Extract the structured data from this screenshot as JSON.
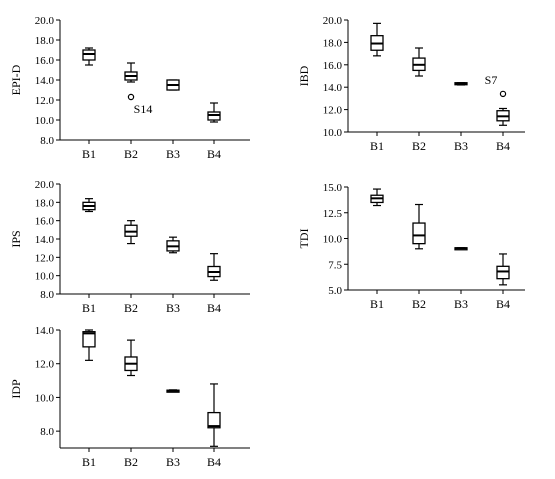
{
  "chart_data": [
    {
      "type": "box",
      "ylabel": "EPI-D",
      "categories": [
        "B1",
        "B2",
        "B3",
        "B4"
      ],
      "ylim": [
        8.0,
        20.0
      ],
      "yticks": [
        8.0,
        10.0,
        12.0,
        14.0,
        16.0,
        18.0,
        20.0
      ],
      "ytick_labels": [
        "8.0",
        "10.0",
        "12.0",
        "14.0",
        "16.0",
        "18.0",
        "20.0"
      ],
      "boxes": [
        {
          "min": 15.5,
          "q1": 16.0,
          "median": 16.6,
          "q3": 17.0,
          "max": 17.2
        },
        {
          "min": 13.8,
          "q1": 14.0,
          "median": 14.4,
          "q3": 14.8,
          "max": 15.7
        },
        {
          "min": 13.0,
          "q1": 13.0,
          "median": 13.5,
          "q3": 14.0,
          "max": 14.0
        },
        {
          "min": 9.8,
          "q1": 10.0,
          "median": 10.5,
          "q3": 10.8,
          "max": 11.7
        }
      ],
      "outliers": [
        {
          "category": "B2",
          "value": 12.3,
          "label": "S14"
        }
      ]
    },
    {
      "type": "box",
      "ylabel": "IBD",
      "categories": [
        "B1",
        "B2",
        "B3",
        "B4"
      ],
      "ylim": [
        10.0,
        20.0
      ],
      "yticks": [
        10.0,
        12.0,
        14.0,
        16.0,
        18.0,
        20.0
      ],
      "ytick_labels": [
        "10.0",
        "12.0",
        "14.0",
        "16.0",
        "18.0",
        "20.0"
      ],
      "boxes": [
        {
          "min": 16.8,
          "q1": 17.3,
          "median": 17.9,
          "q3": 18.6,
          "max": 19.7
        },
        {
          "min": 15.0,
          "q1": 15.5,
          "median": 16.0,
          "q3": 16.6,
          "max": 17.5
        },
        {
          "min": 14.2,
          "q1": 14.3,
          "median": 14.3,
          "q3": 14.4,
          "max": 14.4
        },
        {
          "min": 10.6,
          "q1": 11.0,
          "median": 11.4,
          "q3": 11.9,
          "max": 12.1
        }
      ],
      "outliers": [
        {
          "category": "B4",
          "value": 13.4,
          "label": "S7"
        }
      ]
    },
    {
      "type": "box",
      "ylabel": "IPS",
      "categories": [
        "B1",
        "B2",
        "B3",
        "B4"
      ],
      "ylim": [
        8.0,
        20.0
      ],
      "yticks": [
        8.0,
        10.0,
        12.0,
        14.0,
        16.0,
        18.0,
        20.0
      ],
      "ytick_labels": [
        "8.0",
        "10.0",
        "12.0",
        "14.0",
        "16.0",
        "18.0",
        "20.0"
      ],
      "boxes": [
        {
          "min": 17.0,
          "q1": 17.2,
          "median": 17.6,
          "q3": 18.0,
          "max": 18.4
        },
        {
          "min": 13.5,
          "q1": 14.3,
          "median": 14.8,
          "q3": 15.5,
          "max": 16.0
        },
        {
          "min": 12.5,
          "q1": 12.7,
          "median": 13.2,
          "q3": 13.8,
          "max": 14.2
        },
        {
          "min": 9.5,
          "q1": 9.9,
          "median": 10.4,
          "q3": 11.0,
          "max": 12.4
        }
      ],
      "outliers": []
    },
    {
      "type": "box",
      "ylabel": "TDI",
      "categories": [
        "B1",
        "B2",
        "B3",
        "B4"
      ],
      "ylim": [
        5.0,
        15.0
      ],
      "yticks": [
        5.0,
        7.5,
        10.0,
        12.5,
        15.0
      ],
      "ytick_labels": [
        "5.0",
        "7.5",
        "10.0",
        "12.5",
        "15.0"
      ],
      "boxes": [
        {
          "min": 13.2,
          "q1": 13.5,
          "median": 13.9,
          "q3": 14.2,
          "max": 14.8
        },
        {
          "min": 9.0,
          "q1": 9.5,
          "median": 10.3,
          "q3": 11.5,
          "max": 13.3
        },
        {
          "min": 9.0,
          "q1": 9.0,
          "median": 9.05,
          "q3": 9.1,
          "max": 9.1
        },
        {
          "min": 5.5,
          "q1": 6.1,
          "median": 6.8,
          "q3": 7.3,
          "max": 8.5
        }
      ],
      "outliers": []
    },
    {
      "type": "box",
      "ylabel": "IDP",
      "categories": [
        "B1",
        "B2",
        "B3",
        "B4"
      ],
      "ylim": [
        7.0,
        14.0
      ],
      "yticks": [
        8.0,
        10.0,
        12.0,
        14.0
      ],
      "ytick_labels": [
        "8.0",
        "10.0",
        "12.0",
        "14.0"
      ],
      "boxes": [
        {
          "min": 12.2,
          "q1": 13.0,
          "median": 13.8,
          "q3": 13.9,
          "max": 14.0
        },
        {
          "min": 11.3,
          "q1": 11.6,
          "median": 12.0,
          "q3": 12.4,
          "max": 13.4
        },
        {
          "min": 10.35,
          "q1": 10.38,
          "median": 10.4,
          "q3": 10.43,
          "max": 10.45
        },
        {
          "min": 7.1,
          "q1": 8.2,
          "median": 8.3,
          "q3": 9.1,
          "max": 10.8
        }
      ],
      "outliers": []
    }
  ]
}
